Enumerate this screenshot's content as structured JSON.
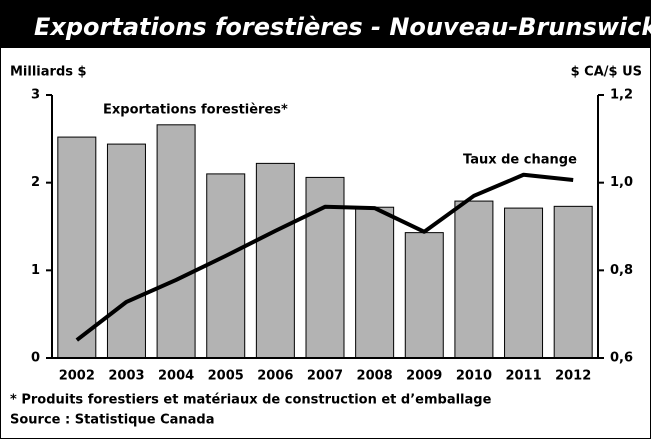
{
  "chart_data": {
    "type": "bar_line",
    "title": "Exportations forestières - Nouveau-Brunswick",
    "y_label": "Milliards $",
    "y2_label": "$ CA/$ US",
    "categories": [
      "2002",
      "2003",
      "2004",
      "2005",
      "2006",
      "2007",
      "2008",
      "2009",
      "2010",
      "2011",
      "2012"
    ],
    "series": [
      {
        "name": "Exportations forestières*",
        "type": "bar",
        "color": "#b3b3b3",
        "values": [
          2.52,
          2.44,
          2.66,
          2.1,
          2.22,
          2.06,
          1.72,
          1.43,
          1.79,
          1.71,
          1.73
        ]
      },
      {
        "name": "Taux de change",
        "type": "line",
        "axis": "y2",
        "color": "#000000",
        "values": [
          0.641,
          0.728,
          0.778,
          0.833,
          0.89,
          0.945,
          0.942,
          0.888,
          0.97,
          1.018,
          1.006
        ]
      }
    ],
    "ylim": [
      0,
      3
    ],
    "yticks": [
      0,
      1,
      2,
      3
    ],
    "y2lim": [
      0.6,
      1.2
    ],
    "y2ticks": [
      {
        "value": 0.6,
        "label": "0,6"
      },
      {
        "value": 0.8,
        "label": "0,8"
      },
      {
        "value": 1.0,
        "label": "1,0"
      },
      {
        "value": 1.2,
        "label": "1,2"
      }
    ],
    "footnote": "* Produits forestiers et matériaux de construction et d’emballage",
    "source": "Source : Statistique Canada"
  }
}
